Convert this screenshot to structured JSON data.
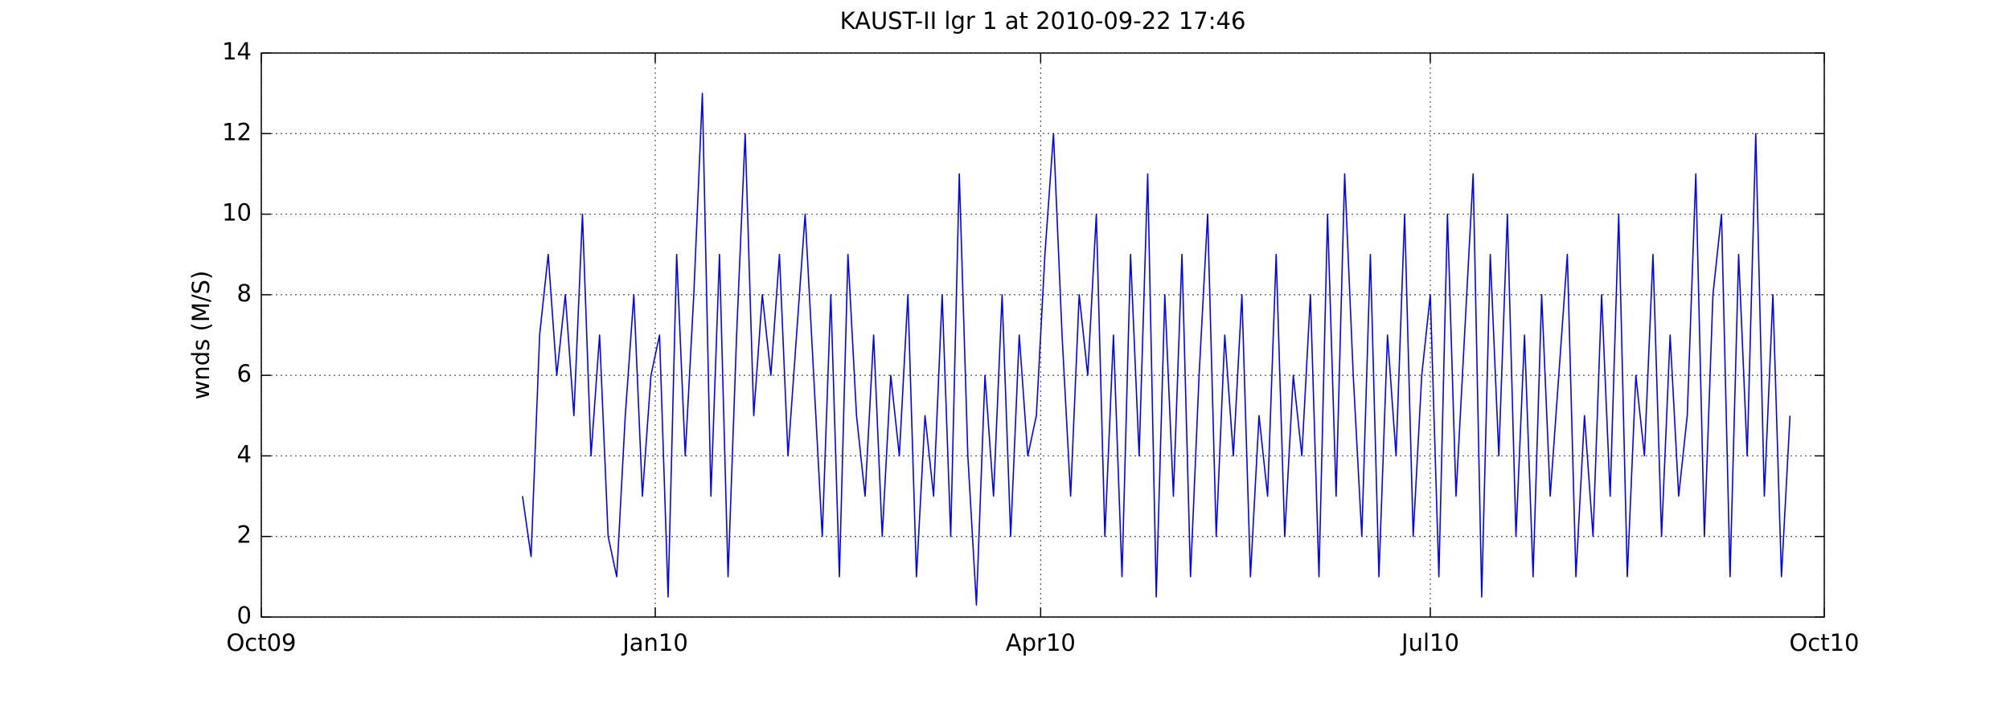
{
  "chart_data": {
    "type": "line",
    "title": "KAUST-II lgr 1 at 2010-09-22 17:46",
    "y_label": "wnds (M/S)",
    "xlim": [
      734047,
      734412
    ],
    "xticks": [
      {
        "value": 734047,
        "label": "Oct09"
      },
      {
        "value": 734139,
        "label": "Jan10"
      },
      {
        "value": 734229,
        "label": "Apr10"
      },
      {
        "value": 734320,
        "label": "Jul10"
      },
      {
        "value": 734412,
        "label": "Oct10"
      }
    ],
    "ylim": [
      0,
      14
    ],
    "yticks": [
      0,
      2,
      4,
      6,
      8,
      10,
      12,
      14
    ],
    "grid": true,
    "series": [
      {
        "name": "wnds",
        "color": "#0000ff",
        "x": [
          734108,
          734110,
          734112,
          734114,
          734116,
          734118,
          734120,
          734122,
          734124,
          734126,
          734128,
          734130,
          734132,
          734134,
          734136,
          734138,
          734140,
          734142,
          734144,
          734146,
          734148,
          734150,
          734152,
          734154,
          734156,
          734158,
          734160,
          734162,
          734164,
          734166,
          734168,
          734170,
          734172,
          734174,
          734176,
          734178,
          734180,
          734182,
          734184,
          734186,
          734188,
          734190,
          734192,
          734194,
          734196,
          734198,
          734200,
          734202,
          734204,
          734206,
          734208,
          734210,
          734212,
          734214,
          734216,
          734218,
          734220,
          734222,
          734224,
          734226,
          734228,
          734230,
          734232,
          734234,
          734236,
          734238,
          734240,
          734242,
          734244,
          734246,
          734248,
          734250,
          734252,
          734254,
          734256,
          734258,
          734260,
          734262,
          734264,
          734266,
          734268,
          734270,
          734272,
          734274,
          734276,
          734278,
          734280,
          734282,
          734284,
          734286,
          734288,
          734290,
          734292,
          734294,
          734296,
          734298,
          734300,
          734302,
          734304,
          734306,
          734308,
          734310,
          734312,
          734314,
          734316,
          734318,
          734320,
          734322,
          734324,
          734326,
          734328,
          734330,
          734332,
          734334,
          734336,
          734338,
          734340,
          734342,
          734344,
          734346,
          734348,
          734350,
          734352,
          734354,
          734356,
          734358,
          734360,
          734362,
          734364,
          734366,
          734368,
          734370,
          734372,
          734374,
          734376,
          734378,
          734380,
          734382,
          734384,
          734386,
          734388,
          734390,
          734392,
          734394,
          734396,
          734398,
          734400,
          734402,
          734404
        ],
        "values": [
          3,
          1.5,
          7,
          9,
          6,
          8,
          5,
          10,
          4,
          7,
          2,
          1,
          5,
          8,
          3,
          6,
          7,
          0.5,
          9,
          4,
          8,
          13,
          3,
          9,
          1,
          7,
          12,
          5,
          8,
          6,
          9,
          4,
          7,
          10,
          6,
          2,
          8,
          1,
          9,
          5,
          3,
          7,
          2,
          6,
          4,
          8,
          1,
          5,
          3,
          8,
          2,
          11,
          4,
          0.3,
          6,
          3,
          8,
          2,
          7,
          4,
          5,
          9,
          12,
          7,
          3,
          8,
          6,
          10,
          2,
          7,
          1,
          9,
          4,
          11,
          0.5,
          8,
          3,
          9,
          1,
          6,
          10,
          2,
          7,
          4,
          8,
          1,
          5,
          3,
          9,
          2,
          6,
          4,
          8,
          1,
          10,
          3,
          11,
          6,
          2,
          9,
          1,
          7,
          4,
          10,
          2,
          6,
          8,
          1,
          10,
          3,
          7,
          11,
          0.5,
          9,
          4,
          10,
          2,
          7,
          1,
          8,
          3,
          6,
          9,
          1,
          5,
          2,
          8,
          3,
          10,
          1,
          6,
          4,
          9,
          2,
          7,
          3,
          5,
          11,
          2,
          8,
          10,
          1,
          9,
          4,
          12,
          3,
          8,
          1,
          5
        ]
      }
    ]
  }
}
